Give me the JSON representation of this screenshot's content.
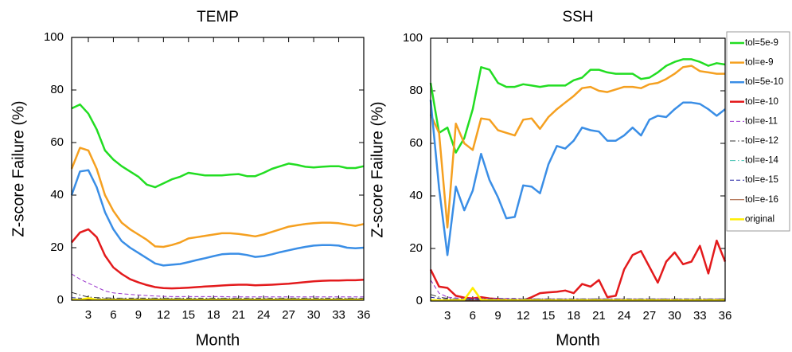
{
  "chart_data": [
    {
      "type": "line",
      "title": "TEMP",
      "xlabel": "Month",
      "ylabel": "Z-score Failure (%)",
      "x": [
        1,
        2,
        3,
        4,
        5,
        6,
        7,
        8,
        9,
        10,
        11,
        12,
        13,
        14,
        15,
        16,
        17,
        18,
        19,
        20,
        21,
        22,
        23,
        24,
        25,
        26,
        27,
        28,
        29,
        30,
        31,
        32,
        33,
        34,
        35,
        36
      ],
      "xlim": [
        1,
        36
      ],
      "xticks": [
        3,
        6,
        9,
        12,
        15,
        18,
        21,
        24,
        27,
        30,
        33,
        36
      ],
      "ylim": [
        0,
        100
      ],
      "yticks": [
        0,
        20,
        40,
        60,
        80,
        100
      ],
      "legend": false,
      "series": [
        {
          "name": "tol=5e-9",
          "color": "#22dd22",
          "dash": "solid",
          "linewidth": 2.5,
          "values": [
            73,
            74.5,
            71,
            65,
            57,
            53.5,
            51,
            49,
            47,
            44,
            43,
            44.5,
            46,
            47,
            48.5,
            48,
            47.5,
            47.5,
            47.5,
            47.8,
            48,
            47.2,
            47.2,
            48.5,
            50,
            51,
            52,
            51.5,
            50.8,
            50.5,
            50.8,
            51,
            51,
            50.3,
            50.3,
            51
          ]
        },
        {
          "name": "tol=e-9",
          "color": "#f5a020",
          "dash": "solid",
          "linewidth": 2.5,
          "values": [
            50,
            58,
            57,
            50,
            40,
            34,
            29.5,
            27,
            25,
            23,
            20.5,
            20.3,
            21,
            22,
            23.5,
            24,
            24.5,
            25,
            25.5,
            25.5,
            25.2,
            24.8,
            24.3,
            25,
            26,
            27,
            28,
            28.5,
            29,
            29.3,
            29.5,
            29.5,
            29.3,
            28.8,
            28.3,
            29
          ]
        },
        {
          "name": "tol=5e-10",
          "color": "#3a8ee6",
          "dash": "solid",
          "linewidth": 2.5,
          "values": [
            40,
            49,
            49.5,
            43,
            33.5,
            27,
            22.5,
            20,
            18,
            16,
            14,
            13.2,
            13.5,
            13.8,
            14.5,
            15.3,
            16,
            16.8,
            17.5,
            17.7,
            17.7,
            17.2,
            16.5,
            16.8,
            17.5,
            18.3,
            19,
            19.7,
            20.3,
            20.8,
            21,
            21,
            20.8,
            20,
            19.8,
            20
          ]
        },
        {
          "name": "tol=e-10",
          "color": "#e31a1c",
          "dash": "solid",
          "linewidth": 2.5,
          "values": [
            22,
            25.8,
            27,
            24,
            17,
            12.5,
            10,
            8,
            6.8,
            5.8,
            5,
            4.6,
            4.5,
            4.6,
            4.8,
            5,
            5.2,
            5.4,
            5.6,
            5.8,
            5.9,
            5.9,
            5.7,
            5.8,
            5.9,
            6.1,
            6.3,
            6.6,
            6.9,
            7.2,
            7.4,
            7.5,
            7.5,
            7.6,
            7.6,
            7.8
          ]
        },
        {
          "name": "tol=e-11",
          "color": "#9933cc",
          "dash": "dashed",
          "linewidth": 1,
          "values": [
            10,
            8,
            6.5,
            5,
            3.5,
            2.8,
            2.5,
            2.2,
            2,
            1.8,
            1.6,
            1.5,
            1.4,
            1.4,
            1.4,
            1.4,
            1.4,
            1.4,
            1.4,
            1.3,
            1.3,
            1.3,
            1.3,
            1.3,
            1.3,
            1.3,
            1.3,
            1.3,
            1.3,
            1.3,
            1.3,
            1.3,
            1.3,
            1.3,
            1.3,
            1.3
          ]
        },
        {
          "name": "tol=e-12",
          "color": "#333333",
          "dash": "dashdot",
          "linewidth": 1,
          "values": [
            3,
            2,
            1.2,
            1,
            0.9,
            0.8,
            0.8,
            0.8,
            0.8,
            0.8,
            0.8,
            0.8,
            0.8,
            0.8,
            0.8,
            0.8,
            0.8,
            0.8,
            0.8,
            0.8,
            0.8,
            0.8,
            0.8,
            0.8,
            0.8,
            0.8,
            0.8,
            0.8,
            0.8,
            0.8,
            0.8,
            0.8,
            0.8,
            0.8,
            0.8,
            0.8
          ]
        },
        {
          "name": "tol=e-14",
          "color": "#40c0b0",
          "dash": "dashdot",
          "linewidth": 1,
          "values": [
            0.5,
            0.5,
            0.5,
            0.5,
            0.5,
            0.5,
            0.5,
            0.5,
            0.5,
            0.5,
            0.5,
            0.5,
            0.5,
            0.5,
            0.5,
            0.5,
            0.5,
            0.5,
            0.5,
            0.5,
            0.5,
            0.5,
            0.5,
            0.5,
            0.5,
            0.5,
            0.5,
            0.5,
            0.5,
            0.5,
            0.5,
            0.5,
            0.5,
            0.5,
            0.5,
            0.5
          ]
        },
        {
          "name": "tol=e-15",
          "color": "#1f1fa0",
          "dash": "dashed",
          "linewidth": 1,
          "values": [
            1,
            0.8,
            0.6,
            0.6,
            0.6,
            0.6,
            0.6,
            0.6,
            0.6,
            0.6,
            0.6,
            0.6,
            0.6,
            0.6,
            0.6,
            0.6,
            0.6,
            0.6,
            0.6,
            0.6,
            0.6,
            0.6,
            0.6,
            0.6,
            0.6,
            0.6,
            0.6,
            0.6,
            0.6,
            0.6,
            0.6,
            0.6,
            0.6,
            0.6,
            0.6,
            0.6
          ]
        },
        {
          "name": "tol=e-16",
          "color": "#a0522d",
          "dash": "solid",
          "linewidth": 1,
          "values": [
            0.3,
            0.3,
            0.3,
            0.3,
            0.3,
            0.3,
            0.3,
            0.3,
            0.3,
            0.3,
            0.3,
            0.3,
            0.3,
            0.3,
            0.3,
            0.3,
            0.3,
            0.3,
            0.3,
            0.3,
            0.3,
            0.3,
            0.3,
            0.3,
            0.3,
            0.3,
            0.3,
            0.3,
            0.3,
            0.3,
            0.3,
            0.3,
            0.3,
            0.3,
            0.3,
            0.3
          ]
        },
        {
          "name": "original",
          "color": "#ffee00",
          "dash": "solid",
          "linewidth": 2.5,
          "values": [
            0.2,
            0.2,
            0.8,
            0.2,
            0.2,
            0.2,
            0.2,
            0.2,
            0.2,
            0.2,
            0.2,
            0.2,
            0.2,
            0.2,
            0.2,
            0.2,
            0.2,
            0.2,
            0.2,
            0.2,
            0.2,
            0.2,
            0.2,
            0.2,
            0.2,
            0.2,
            0.2,
            0.2,
            0.2,
            0.2,
            0.2,
            0.2,
            0.2,
            0.2,
            0.2,
            0.2
          ]
        }
      ]
    },
    {
      "type": "line",
      "title": "SSH",
      "xlabel": "Month",
      "ylabel": "Z-score Failure (%)",
      "x": [
        1,
        2,
        3,
        4,
        5,
        6,
        7,
        8,
        9,
        10,
        11,
        12,
        13,
        14,
        15,
        16,
        17,
        18,
        19,
        20,
        21,
        22,
        23,
        24,
        25,
        26,
        27,
        28,
        29,
        30,
        31,
        32,
        33,
        34,
        35,
        36
      ],
      "xlim": [
        1,
        36
      ],
      "xticks": [
        3,
        6,
        9,
        12,
        15,
        18,
        21,
        24,
        27,
        30,
        33,
        36
      ],
      "ylim": [
        0,
        100
      ],
      "yticks": [
        0,
        20,
        40,
        60,
        80,
        100
      ],
      "legend": "outside-right",
      "series": [
        {
          "name": "tol=5e-9",
          "color": "#22dd22",
          "dash": "solid",
          "linewidth": 2.5,
          "values": [
            83,
            64,
            66,
            56.5,
            62,
            73,
            89,
            88,
            83,
            81.5,
            81.5,
            82.5,
            82,
            81.5,
            82,
            82,
            82,
            84,
            85,
            88,
            88,
            87,
            86.5,
            86.5,
            86.5,
            84.5,
            85,
            87,
            89.5,
            91,
            92,
            92,
            91,
            89.5,
            90.5,
            90
          ]
        },
        {
          "name": "tol=e-9",
          "color": "#f5a020",
          "dash": "solid",
          "linewidth": 2.5,
          "values": [
            71,
            64,
            28,
            67.5,
            60,
            57.5,
            69.5,
            69,
            65,
            64,
            63,
            69,
            69.5,
            65.5,
            70,
            73,
            75.5,
            78,
            81,
            81.5,
            80,
            79.5,
            80.5,
            81.5,
            81.5,
            81,
            82.5,
            83,
            84.5,
            86.5,
            89,
            89.5,
            87.5,
            87,
            86.5,
            86.5
          ]
        },
        {
          "name": "tol=5e-10",
          "color": "#3a8ee6",
          "dash": "solid",
          "linewidth": 2.5,
          "values": [
            76.5,
            43,
            17.5,
            43.5,
            34.5,
            42,
            56,
            46,
            39.5,
            31.5,
            32,
            44,
            43.5,
            41,
            52,
            59,
            58,
            61,
            66,
            65,
            64.5,
            61,
            61,
            63,
            66,
            63,
            69,
            70.5,
            70,
            73,
            75.5,
            75.5,
            75,
            73,
            70.5,
            73
          ]
        },
        {
          "name": "tol=e-10",
          "color": "#e31a1c",
          "dash": "solid",
          "linewidth": 2.5,
          "values": [
            12,
            5.5,
            5,
            2,
            1.3,
            1,
            1.5,
            1,
            0.8,
            0.5,
            0.3,
            0.2,
            1.5,
            3,
            3.3,
            3.5,
            4,
            3,
            6.5,
            5.5,
            8,
            1.5,
            2,
            12,
            17.5,
            19,
            13,
            7,
            15,
            18.5,
            14,
            15,
            21,
            10.5,
            23,
            15
          ]
        },
        {
          "name": "tol=e-11",
          "color": "#9933cc",
          "dash": "dashed",
          "linewidth": 1,
          "values": [
            8,
            3,
            1.5,
            1.2,
            1,
            1,
            1,
            1,
            1,
            1,
            1,
            0.8,
            0.8,
            0.8,
            0.8,
            0.8,
            0.8,
            0.8,
            0.8,
            0.8,
            0.8,
            0.8,
            0.8,
            0.8,
            0.8,
            0.8,
            0.8,
            0.8,
            0.8,
            0.8,
            0.8,
            0.8,
            0.8,
            0.8,
            0.8,
            0.8
          ]
        },
        {
          "name": "tol=e-12",
          "color": "#333333",
          "dash": "dashdot",
          "linewidth": 1,
          "values": [
            2.5,
            1.5,
            1,
            0.8,
            0.8,
            0.8,
            0.8,
            0.8,
            0.8,
            0.8,
            0.8,
            0.8,
            0.8,
            0.8,
            0.8,
            0.8,
            0.8,
            0.8,
            0.8,
            0.8,
            0.8,
            0.8,
            0.8,
            0.8,
            0.8,
            0.8,
            0.8,
            0.8,
            0.8,
            0.8,
            0.8,
            0.8,
            0.8,
            0.8,
            0.8,
            0.8
          ]
        },
        {
          "name": "tol=e-14",
          "color": "#40c0b0",
          "dash": "dashdot",
          "linewidth": 1,
          "values": [
            0.5,
            0.5,
            0.5,
            0.5,
            0.5,
            0.5,
            0.5,
            0.5,
            0.5,
            0.5,
            0.5,
            0.5,
            0.5,
            0.5,
            0.5,
            0.5,
            0.5,
            0.5,
            0.5,
            0.5,
            0.5,
            0.5,
            0.5,
            0.5,
            0.5,
            0.5,
            0.5,
            0.5,
            0.5,
            0.5,
            0.5,
            0.5,
            0.5,
            0.5,
            0.5,
            0.5
          ]
        },
        {
          "name": "tol=e-15",
          "color": "#1f1fa0",
          "dash": "dashed",
          "linewidth": 1,
          "values": [
            1.5,
            1,
            0.7,
            0.7,
            0.7,
            0.7,
            0.7,
            0.7,
            0.7,
            0.7,
            0.7,
            0.7,
            0.7,
            0.7,
            0.7,
            0.7,
            0.7,
            0.7,
            0.7,
            0.7,
            0.7,
            0.7,
            0.7,
            0.7,
            0.7,
            0.7,
            0.7,
            0.7,
            0.7,
            0.7,
            0.7,
            0.7,
            0.7,
            0.7,
            0.7,
            0.7
          ]
        },
        {
          "name": "tol=e-16",
          "color": "#a0522d",
          "dash": "solid",
          "linewidth": 1,
          "values": [
            0.3,
            0.3,
            0.3,
            0.3,
            0.3,
            0.3,
            0.3,
            0.3,
            0.3,
            0.3,
            0.3,
            0.3,
            0.3,
            0.3,
            0.3,
            0.3,
            0.3,
            0.3,
            0.3,
            0.3,
            0.3,
            0.3,
            0.3,
            0.3,
            0.3,
            0.3,
            0.3,
            0.3,
            0.3,
            0.3,
            0.3,
            0.3,
            0.3,
            0.3,
            0.3,
            0.3
          ]
        },
        {
          "name": "original",
          "color": "#ffee00",
          "dash": "solid",
          "linewidth": 2.5,
          "values": [
            0.3,
            0.3,
            0.3,
            0.3,
            0.5,
            5,
            0.5,
            0.3,
            0.3,
            0.3,
            0.3,
            0.3,
            0.3,
            0.3,
            0.3,
            0.3,
            0.3,
            0.3,
            0.3,
            0.3,
            0.3,
            0.3,
            0.3,
            0.3,
            0.3,
            0.3,
            0.3,
            0.3,
            0.3,
            0.3,
            0.3,
            0.3,
            0.3,
            0.3,
            0.3,
            0.3
          ]
        }
      ]
    }
  ]
}
